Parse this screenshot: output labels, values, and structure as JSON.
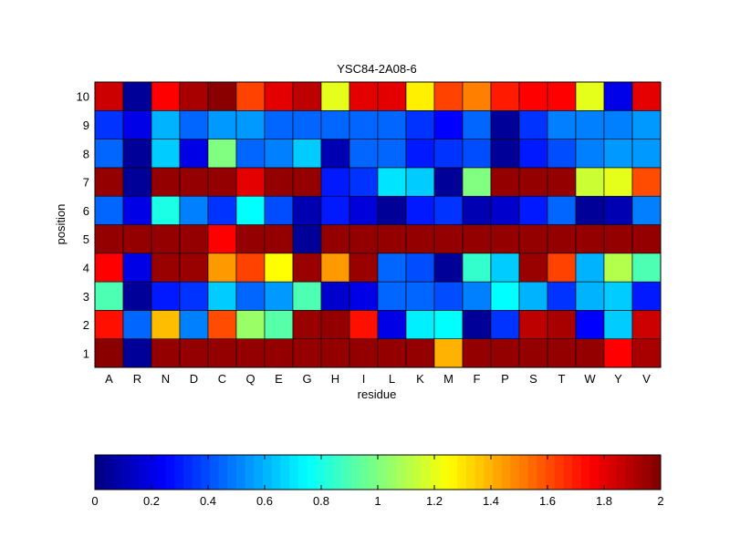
{
  "chart_data": {
    "type": "heatmap",
    "title": "YSC84-2A08-6",
    "xlabel": "residue",
    "ylabel": "position",
    "x_categories": [
      "A",
      "R",
      "N",
      "D",
      "C",
      "Q",
      "E",
      "G",
      "H",
      "I",
      "L",
      "K",
      "M",
      "F",
      "P",
      "S",
      "T",
      "W",
      "Y",
      "V"
    ],
    "y_categories": [
      "1",
      "2",
      "3",
      "4",
      "5",
      "6",
      "7",
      "8",
      "9",
      "10"
    ],
    "values": [
      [
        1.98,
        0.05,
        1.96,
        1.96,
        1.96,
        1.96,
        1.96,
        1.96,
        1.96,
        1.96,
        1.96,
        1.96,
        1.4,
        1.96,
        1.96,
        1.96,
        1.96,
        1.96,
        1.75,
        1.92
      ],
      [
        1.72,
        0.45,
        1.38,
        0.5,
        1.6,
        1.05,
        0.92,
        1.95,
        1.96,
        1.72,
        0.2,
        0.72,
        0.75,
        0.05,
        0.35,
        1.88,
        1.92,
        0.25,
        0.65,
        1.85
      ],
      [
        0.9,
        0.05,
        0.3,
        0.35,
        0.65,
        0.45,
        0.55,
        0.9,
        0.15,
        0.2,
        0.45,
        0.45,
        0.4,
        0.5,
        0.75,
        0.6,
        0.35,
        0.6,
        0.65,
        0.3
      ],
      [
        1.75,
        0.2,
        1.95,
        1.95,
        1.45,
        1.62,
        1.25,
        1.95,
        1.45,
        1.95,
        0.45,
        0.4,
        0.05,
        0.85,
        0.65,
        1.95,
        1.62,
        0.6,
        1.1,
        0.9
      ],
      [
        1.96,
        1.96,
        1.96,
        1.96,
        1.75,
        1.96,
        1.96,
        0.05,
        1.96,
        1.96,
        1.96,
        1.96,
        1.96,
        1.96,
        1.96,
        1.96,
        1.96,
        1.96,
        1.96,
        1.96
      ],
      [
        0.45,
        0.2,
        0.8,
        0.5,
        0.35,
        0.75,
        0.4,
        0.1,
        0.3,
        0.18,
        0.05,
        0.3,
        0.35,
        0.1,
        0.15,
        0.3,
        0.45,
        0.05,
        0.1,
        0.5
      ],
      [
        1.96,
        0.05,
        1.96,
        1.96,
        1.96,
        1.8,
        1.96,
        1.96,
        0.3,
        0.35,
        0.7,
        0.65,
        0.05,
        1.0,
        1.96,
        1.96,
        1.96,
        1.15,
        1.2,
        1.6
      ],
      [
        0.45,
        0.05,
        0.65,
        0.2,
        1.0,
        0.45,
        0.5,
        0.65,
        0.1,
        0.45,
        0.45,
        0.3,
        0.35,
        0.4,
        0.05,
        0.3,
        0.4,
        0.5,
        0.55,
        0.55
      ],
      [
        0.35,
        0.2,
        0.6,
        0.45,
        0.55,
        0.55,
        0.45,
        0.45,
        0.45,
        0.45,
        0.45,
        0.35,
        0.25,
        0.45,
        0.05,
        0.35,
        0.5,
        0.5,
        0.5,
        0.55
      ],
      [
        1.85,
        0.05,
        1.75,
        1.92,
        1.98,
        1.62,
        1.8,
        1.88,
        1.2,
        1.8,
        1.8,
        1.28,
        1.62,
        1.5,
        1.7,
        1.75,
        1.75,
        1.2,
        0.2,
        1.8
      ]
    ],
    "colorbar": {
      "min": 0,
      "max": 2,
      "ticks": [
        0,
        0.2,
        0.4,
        0.6,
        0.8,
        1,
        1.2,
        1.4,
        1.6,
        1.8,
        2
      ],
      "tick_labels": [
        "0",
        "0.2",
        "0.4",
        "0.6",
        "0.8",
        "1",
        "1.2",
        "1.4",
        "1.6",
        "1.8",
        "2"
      ],
      "colormap": "jet"
    }
  }
}
